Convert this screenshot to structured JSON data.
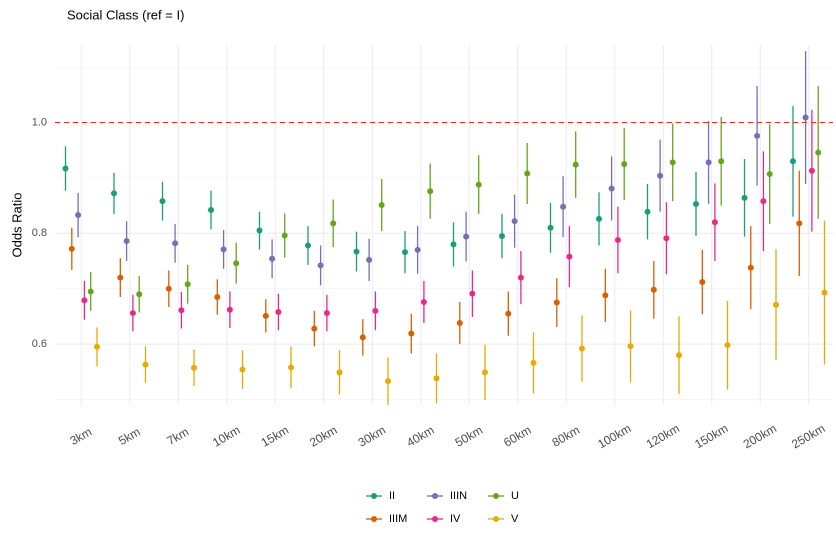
{
  "chart_data": {
    "type": "pointrange",
    "title": "Social Class (ref = I)",
    "y_label": "Odds Ratio",
    "categories": [
      "3km",
      "5km",
      "7km",
      "10km",
      "15km",
      "20km",
      "30km",
      "40km",
      "50km",
      "60km",
      "80km",
      "100km",
      "120km",
      "150km",
      "200km",
      "250km"
    ],
    "series": [
      {
        "name": "II",
        "color": "#1b9e77",
        "values": [
          0.917,
          0.872,
          0.858,
          0.842,
          0.805,
          0.778,
          0.767,
          0.766,
          0.78,
          0.795,
          0.81,
          0.826,
          0.839,
          0.853,
          0.864,
          0.93
        ],
        "errors": [
          0.04,
          0.037,
          0.035,
          0.035,
          0.034,
          0.035,
          0.036,
          0.038,
          0.04,
          0.04,
          0.045,
          0.048,
          0.05,
          0.058,
          0.07,
          0.1
        ]
      },
      {
        "name": "IIIM",
        "color": "#d95f02",
        "values": [
          0.772,
          0.72,
          0.7,
          0.685,
          0.651,
          0.628,
          0.612,
          0.619,
          0.638,
          0.655,
          0.675,
          0.688,
          0.698,
          0.712,
          0.738,
          0.818
        ],
        "errors": [
          0.038,
          0.035,
          0.033,
          0.032,
          0.03,
          0.032,
          0.033,
          0.036,
          0.038,
          0.04,
          0.044,
          0.048,
          0.052,
          0.058,
          0.075,
          0.095
        ]
      },
      {
        "name": "IIIN",
        "color": "#7570b3",
        "values": [
          0.833,
          0.786,
          0.782,
          0.771,
          0.754,
          0.742,
          0.752,
          0.77,
          0.794,
          0.822,
          0.848,
          0.881,
          0.904,
          0.928,
          0.976,
          1.009
        ],
        "errors": [
          0.04,
          0.036,
          0.035,
          0.035,
          0.035,
          0.036,
          0.038,
          0.043,
          0.045,
          0.048,
          0.055,
          0.058,
          0.065,
          0.075,
          0.09,
          0.12
        ]
      },
      {
        "name": "IV",
        "color": "#e7298a",
        "values": [
          0.679,
          0.656,
          0.661,
          0.662,
          0.658,
          0.656,
          0.66,
          0.676,
          0.691,
          0.72,
          0.758,
          0.788,
          0.791,
          0.82,
          0.858,
          0.913
        ],
        "errors": [
          0.035,
          0.033,
          0.033,
          0.033,
          0.033,
          0.033,
          0.035,
          0.038,
          0.042,
          0.048,
          0.055,
          0.06,
          0.065,
          0.07,
          0.09,
          0.11
        ]
      },
      {
        "name": "U",
        "color": "#66a61e",
        "values": [
          0.695,
          0.69,
          0.708,
          0.746,
          0.796,
          0.818,
          0.851,
          0.876,
          0.888,
          0.908,
          0.924,
          0.925,
          0.928,
          0.93,
          0.907,
          0.946
        ],
        "errors": [
          0.035,
          0.033,
          0.035,
          0.037,
          0.04,
          0.043,
          0.047,
          0.05,
          0.053,
          0.055,
          0.06,
          0.065,
          0.07,
          0.08,
          0.09,
          0.12
        ]
      },
      {
        "name": "V",
        "color": "#e6ab02",
        "values": [
          0.595,
          0.563,
          0.557,
          0.554,
          0.558,
          0.549,
          0.533,
          0.538,
          0.549,
          0.566,
          0.592,
          0.596,
          0.58,
          0.598,
          0.671,
          0.693
        ],
        "errors": [
          0.035,
          0.033,
          0.033,
          0.035,
          0.038,
          0.04,
          0.043,
          0.045,
          0.05,
          0.055,
          0.06,
          0.065,
          0.07,
          0.08,
          0.1,
          0.13
        ]
      }
    ],
    "ylim": [
      0.49,
      1.14
    ],
    "yticks": [
      0.6,
      0.8,
      {
        "value": 1,
        "label": "1.0"
      }
    ],
    "yminor": [
      0.5,
      0.7,
      0.9,
      1.1
    ],
    "reference_line": {
      "value": 1,
      "color": "#ff2020"
    },
    "grid": true,
    "legend": "bottom"
  }
}
